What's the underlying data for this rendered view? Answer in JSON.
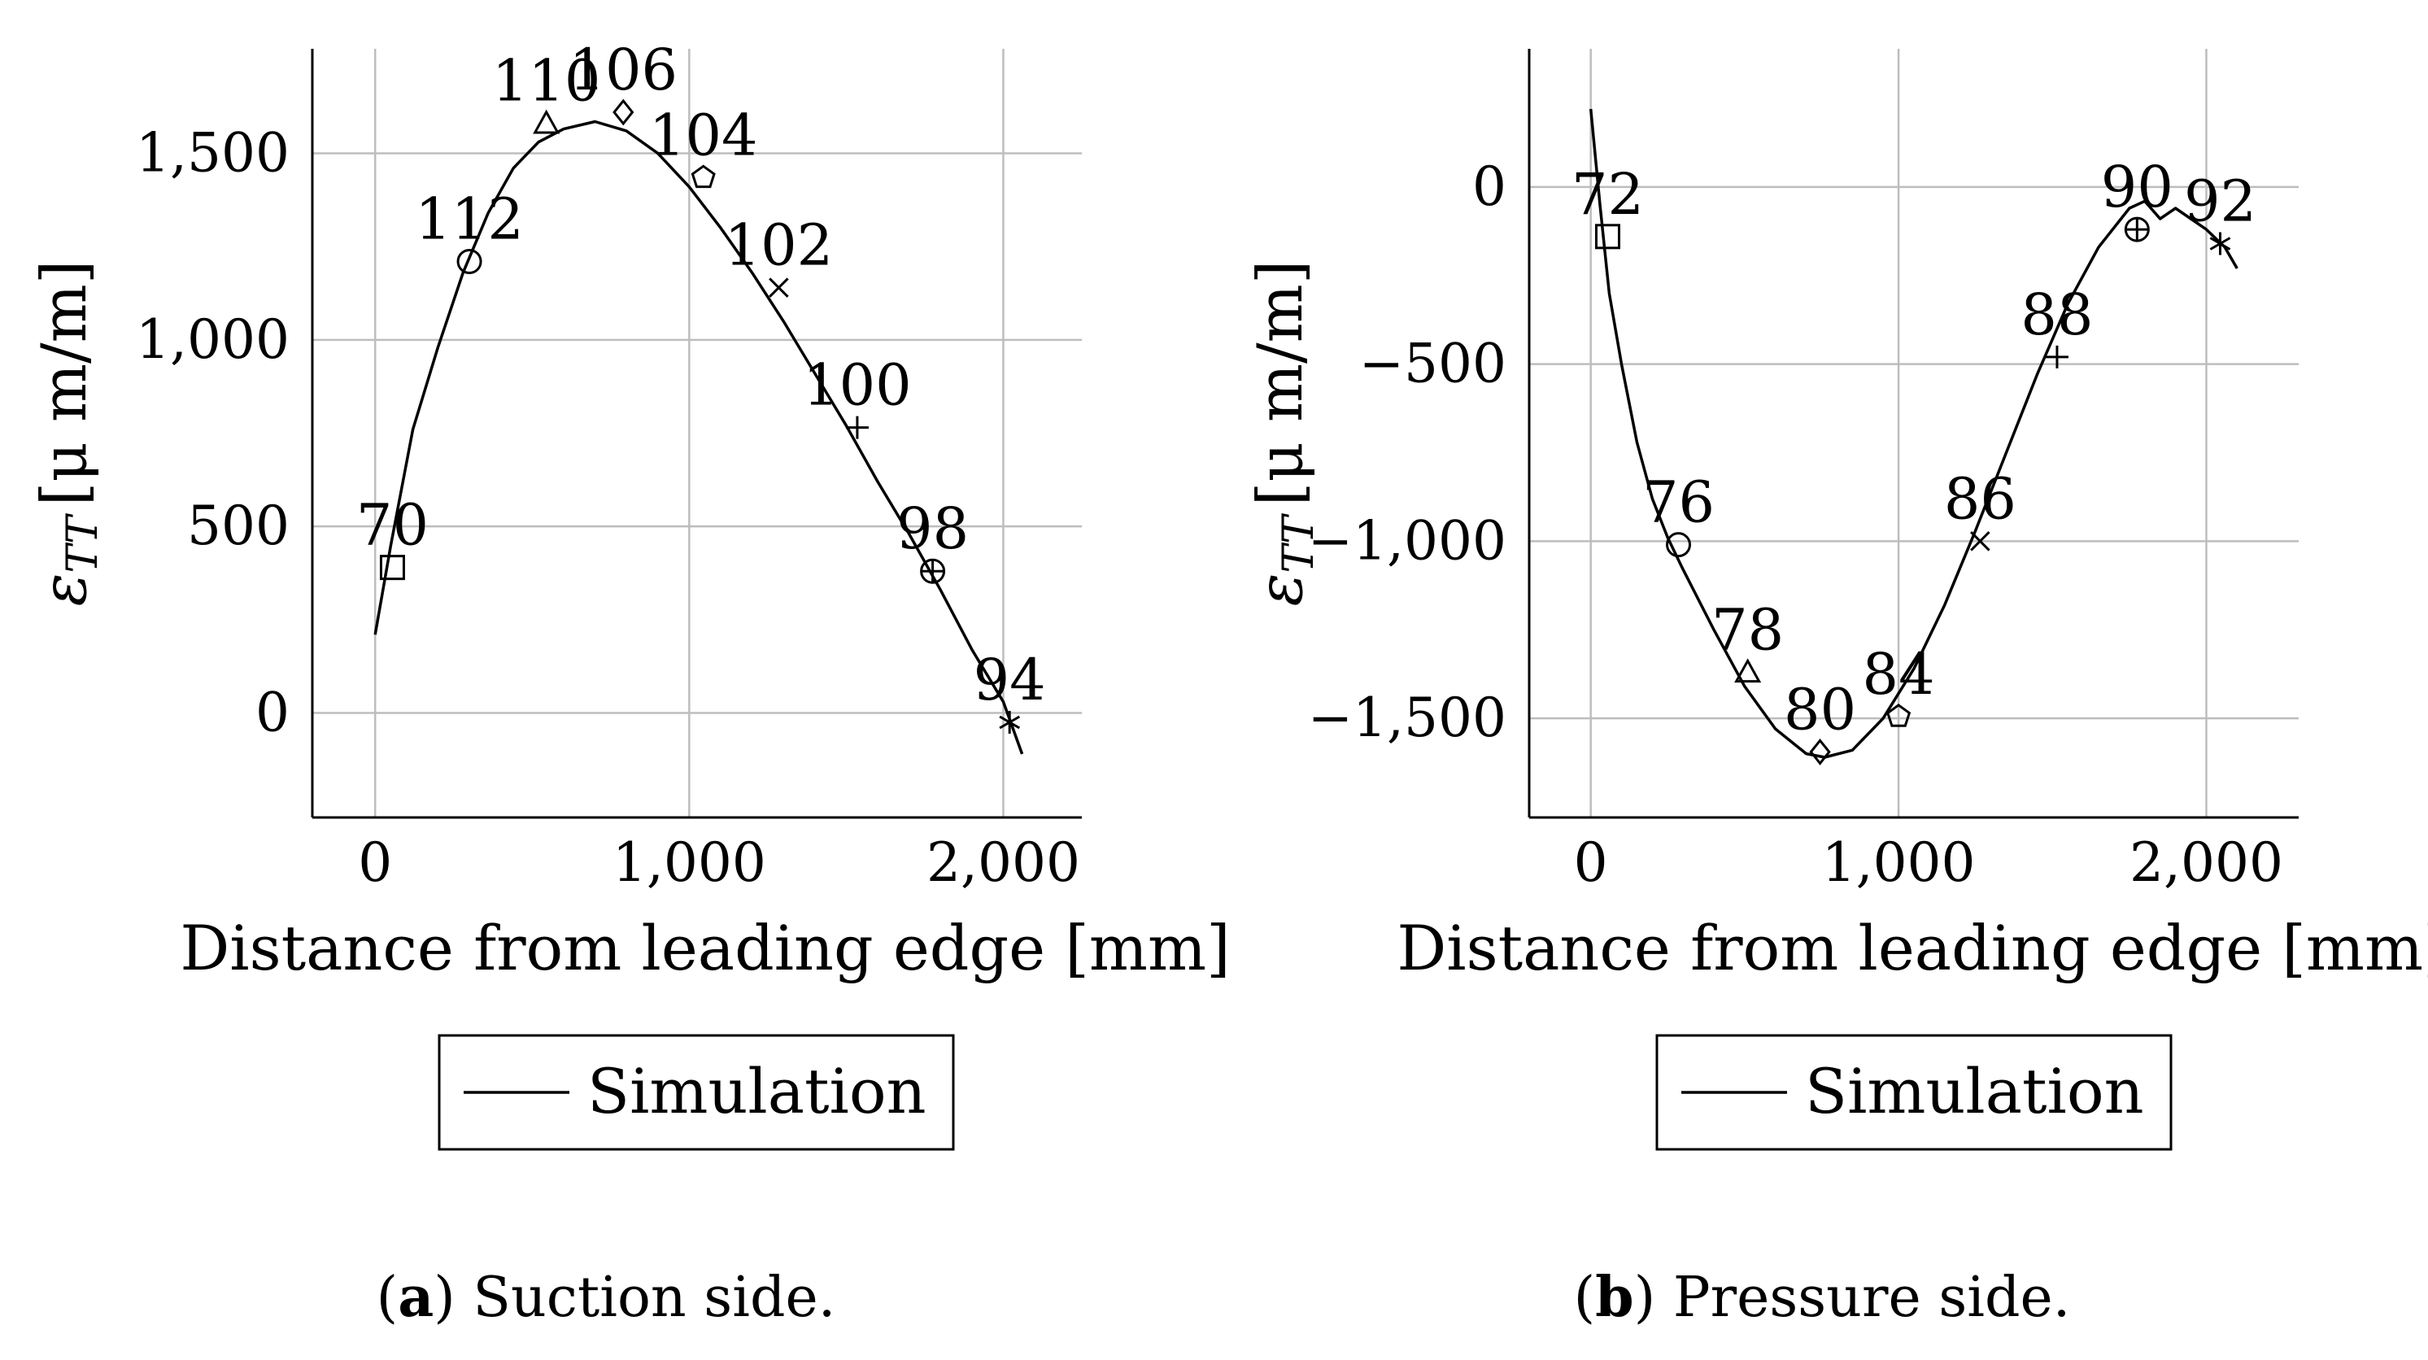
{
  "chart_data": [
    {
      "type": "line",
      "panel_tag": "a",
      "caption": "Suction side.",
      "xlabel": "Distance from leading edge [mm]",
      "ylabel_symbol": "ε",
      "ylabel_subscript": "TT",
      "ylabel_unit": "[μ m/m]",
      "xlim": [
        -200,
        2250
      ],
      "ylim": [
        -280,
        1780
      ],
      "x_ticks": [
        0,
        1000,
        2000
      ],
      "x_tick_labels": [
        "0",
        "1,000",
        "2,000"
      ],
      "y_ticks": [
        0,
        500,
        1000,
        1500
      ],
      "y_tick_labels": [
        "0",
        "500",
        "1,000",
        "1,500"
      ],
      "grid": true,
      "legend": {
        "entries": [
          "Simulation"
        ],
        "placement": "below"
      },
      "series": [
        {
          "name": "Simulation",
          "x": [
            0,
            50,
            120,
            200,
            280,
            360,
            440,
            520,
            600,
            700,
            800,
            900,
            1000,
            1100,
            1200,
            1300,
            1400,
            1500,
            1600,
            1700,
            1800,
            1900,
            2000,
            2060
          ],
          "y": [
            210,
            450,
            760,
            980,
            1180,
            1340,
            1460,
            1530,
            1565,
            1585,
            1560,
            1500,
            1410,
            1300,
            1180,
            1050,
            910,
            770,
            620,
            480,
            330,
            170,
            30,
            -110
          ]
        }
      ],
      "measurements": [
        {
          "label": "70",
          "x": 55,
          "y": 390,
          "marker": "square"
        },
        {
          "label": "112",
          "x": 300,
          "y": 1210,
          "marker": "circle"
        },
        {
          "label": "110",
          "x": 545,
          "y": 1580,
          "marker": "triangle"
        },
        {
          "label": "106",
          "x": 790,
          "y": 1610,
          "marker": "diamond"
        },
        {
          "label": "104",
          "x": 1045,
          "y": 1435,
          "marker": "pentagon"
        },
        {
          "label": "102",
          "x": 1285,
          "y": 1140,
          "marker": "cross"
        },
        {
          "label": "100",
          "x": 1535,
          "y": 765,
          "marker": "plus"
        },
        {
          "label": "98",
          "x": 1775,
          "y": 380,
          "marker": "oplus"
        },
        {
          "label": "94",
          "x": 2020,
          "y": -25,
          "marker": "star"
        }
      ]
    },
    {
      "type": "line",
      "panel_tag": "b",
      "caption": "Pressure side.",
      "xlabel": "Distance from leading edge [mm]",
      "ylabel_symbol": "ε",
      "ylabel_subscript": "TT",
      "ylabel_unit": "[μ m/m]",
      "xlim": [
        -200,
        2300
      ],
      "ylim": [
        -1780,
        390
      ],
      "x_ticks": [
        0,
        1000,
        2000
      ],
      "x_tick_labels": [
        "0",
        "1,000",
        "2,000"
      ],
      "y_ticks": [
        -1500,
        -1000,
        -500,
        0
      ],
      "y_tick_labels": [
        "−1,500",
        "−1,000",
        "−500",
        "0"
      ],
      "grid": true,
      "legend": {
        "entries": [
          "Simulation"
        ],
        "placement": "below"
      },
      "series": [
        {
          "name": "Simulation",
          "x": [
            0,
            30,
            60,
            100,
            150,
            200,
            250,
            300,
            400,
            500,
            600,
            700,
            760,
            850,
            950,
            1050,
            1150,
            1250,
            1350,
            1450,
            1550,
            1650,
            1750,
            1800,
            1850,
            1900,
            2000,
            2060,
            2100
          ],
          "y": [
            220,
            -50,
            -300,
            -500,
            -720,
            -880,
            -990,
            -1080,
            -1250,
            -1410,
            -1530,
            -1600,
            -1610,
            -1590,
            -1500,
            -1360,
            -1180,
            -970,
            -750,
            -530,
            -330,
            -170,
            -60,
            -40,
            -90,
            -60,
            -120,
            -170,
            -230
          ]
        }
      ],
      "measurements": [
        {
          "label": "72",
          "x": 55,
          "y": -140,
          "marker": "square"
        },
        {
          "label": "76",
          "x": 285,
          "y": -1010,
          "marker": "circle"
        },
        {
          "label": "78",
          "x": 510,
          "y": -1370,
          "marker": "triangle"
        },
        {
          "label": "80",
          "x": 745,
          "y": -1595,
          "marker": "diamond"
        },
        {
          "label": "84",
          "x": 1000,
          "y": -1495,
          "marker": "pentagon"
        },
        {
          "label": "86",
          "x": 1265,
          "y": -1000,
          "marker": "cross"
        },
        {
          "label": "88",
          "x": 1515,
          "y": -480,
          "marker": "plus"
        },
        {
          "label": "90",
          "x": 1775,
          "y": -120,
          "marker": "oplus"
        },
        {
          "label": "92",
          "x": 2045,
          "y": -160,
          "marker": "star"
        }
      ]
    }
  ]
}
